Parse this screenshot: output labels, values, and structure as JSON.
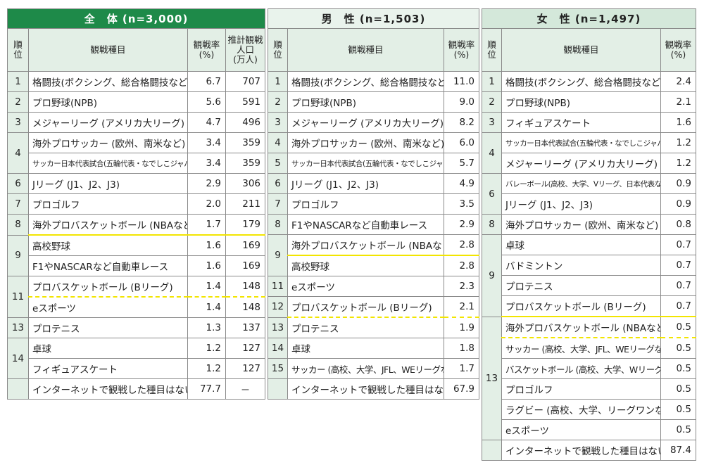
{
  "all": {
    "title": "全　体 (n=3,000)",
    "headers": {
      "rank": [
        "順",
        "位"
      ],
      "item": "観戦種目",
      "rate": [
        "観戦率",
        "(%)"
      ],
      "pop": [
        "推計観戦",
        "人口",
        "(万人)"
      ]
    },
    "rows": [
      {
        "rank": "1",
        "item": "格闘技(ボクシング、総合格闘技など)",
        "rate": "6.7",
        "pop": "707"
      },
      {
        "rank": "2",
        "item": "プロ野球(NPB)",
        "rate": "5.6",
        "pop": "591"
      },
      {
        "rank": "3",
        "item": "メジャーリーグ (アメリカ大リーグ)",
        "rate": "4.7",
        "pop": "496"
      },
      {
        "rank": "4",
        "item": "海外プロサッカー (欧州、南米など)",
        "rate": "3.4",
        "pop": "359"
      },
      {
        "rank": "",
        "item": "サッカー日本代表試合(五輪代表・なでしこジャパン含む)",
        "rate": "3.4",
        "pop": "359"
      },
      {
        "rank": "6",
        "item": "Jリーグ (J1、J2、J3)",
        "rate": "2.9",
        "pop": "306"
      },
      {
        "rank": "7",
        "item": "プロゴルフ",
        "rate": "2.0",
        "pop": "211"
      },
      {
        "rank": "8",
        "item": "海外プロバスケットボール (NBAなど)",
        "rate": "1.7",
        "pop": "179"
      },
      {
        "rank": "9",
        "item": "高校野球",
        "rate": "1.6",
        "pop": "169"
      },
      {
        "rank": "",
        "item": "F1やNASCARなど自動車レース",
        "rate": "1.6",
        "pop": "169"
      },
      {
        "rank": "11",
        "item": "プロバスケットボール (Bリーグ)",
        "rate": "1.4",
        "pop": "148"
      },
      {
        "rank": "",
        "item": "eスポーツ",
        "rate": "1.4",
        "pop": "148"
      },
      {
        "rank": "13",
        "item": "プロテニス",
        "rate": "1.3",
        "pop": "137"
      },
      {
        "rank": "14",
        "item": "卓球",
        "rate": "1.2",
        "pop": "127"
      },
      {
        "rank": "",
        "item": "フィギュアスケート",
        "rate": "1.2",
        "pop": "127"
      }
    ],
    "none": {
      "item": "インターネットで観戦した種目はない",
      "rate": "77.7",
      "pop": "－"
    }
  },
  "male": {
    "title": "男　性 (n=1,503)",
    "headers": {
      "rank": [
        "順",
        "位"
      ],
      "item": "観戦種目",
      "rate": [
        "観戦率",
        "(%)"
      ]
    },
    "rows": [
      {
        "rank": "1",
        "item": "格闘技(ボクシング、総合格闘技など)",
        "rate": "11.0"
      },
      {
        "rank": "2",
        "item": "プロ野球(NPB)",
        "rate": "9.0"
      },
      {
        "rank": "3",
        "item": "メジャーリーグ (アメリカ大リーグ)",
        "rate": "8.2"
      },
      {
        "rank": "4",
        "item": "海外プロサッカー (欧州、南米など)",
        "rate": "6.0"
      },
      {
        "rank": "5",
        "item": "サッカー日本代表試合(五輪代表・なでしこジャパン含む)",
        "rate": "5.7"
      },
      {
        "rank": "6",
        "item": "Jリーグ (J1、J2、J3)",
        "rate": "4.9"
      },
      {
        "rank": "7",
        "item": "プロゴルフ",
        "rate": "3.5"
      },
      {
        "rank": "8",
        "item": "F1やNASCARなど自動車レース",
        "rate": "2.9"
      },
      {
        "rank": "9",
        "item": "海外プロバスケットボール (NBAなど)",
        "rate": "2.8"
      },
      {
        "rank": "",
        "item": "高校野球",
        "rate": "2.8"
      },
      {
        "rank": "11",
        "item": "eスポーツ",
        "rate": "2.3"
      },
      {
        "rank": "12",
        "item": "プロバスケットボール (Bリーグ)",
        "rate": "2.1"
      },
      {
        "rank": "13",
        "item": "プロテニス",
        "rate": "1.9"
      },
      {
        "rank": "14",
        "item": "卓球",
        "rate": "1.8"
      },
      {
        "rank": "15",
        "item": "サッカー (高校、大学、JFL、WEリーグなど)",
        "rate": "1.7"
      }
    ],
    "none": {
      "item": "インターネットで観戦した種目はない",
      "rate": "67.9"
    }
  },
  "female": {
    "title": "女　性 (n=1,497)",
    "headers": {
      "rank": [
        "順",
        "位"
      ],
      "item": "観戦種目",
      "rate": [
        "観戦率",
        "(%)"
      ]
    },
    "rows": [
      {
        "rank": "1",
        "item": "格闘技(ボクシング、総合格闘技など)",
        "rate": "2.4"
      },
      {
        "rank": "2",
        "item": "プロ野球(NPB)",
        "rate": "2.1"
      },
      {
        "rank": "3",
        "item": "フィギュアスケート",
        "rate": "1.6"
      },
      {
        "rank": "4",
        "item": "サッカー日本代表試合(五輪代表・なでしこジャパン含む)",
        "rate": "1.2"
      },
      {
        "rank": "",
        "item": "メジャーリーグ (アメリカ大リーグ)",
        "rate": "1.2"
      },
      {
        "rank": "6",
        "item": "バレーボール(高校、大学、Vリーグ、日本代表など)",
        "rate": "0.9"
      },
      {
        "rank": "",
        "item": "Jリーグ (J1、J2、J3)",
        "rate": "0.9"
      },
      {
        "rank": "8",
        "item": "海外プロサッカー (欧州、南米など)",
        "rate": "0.8"
      },
      {
        "rank": "9",
        "item": "卓球",
        "rate": "0.7"
      },
      {
        "rank": "",
        "item": "バドミントン",
        "rate": "0.7"
      },
      {
        "rank": "",
        "item": "プロテニス",
        "rate": "0.7"
      },
      {
        "rank": "",
        "item": "プロバスケットボール (Bリーグ)",
        "rate": "0.7"
      },
      {
        "rank": "13",
        "item": "海外プロバスケットボール (NBAなど)",
        "rate": "0.5"
      },
      {
        "rank": "",
        "item": "サッカー (高校、大学、JFL、WEリーグなど)",
        "rate": "0.5"
      },
      {
        "rank": "",
        "item": "バスケットボール (高校、大学、Wリーグなど)",
        "rate": "0.5"
      },
      {
        "rank": "",
        "item": "プロゴルフ",
        "rate": "0.5"
      },
      {
        "rank": "",
        "item": "ラグビー (高校、大学、リーグワンなど)",
        "rate": "0.5"
      },
      {
        "rank": "",
        "item": "eスポーツ",
        "rate": "0.5"
      }
    ],
    "none": {
      "item": "インターネットで観戦した種目はない",
      "rate": "87.4"
    }
  }
}
